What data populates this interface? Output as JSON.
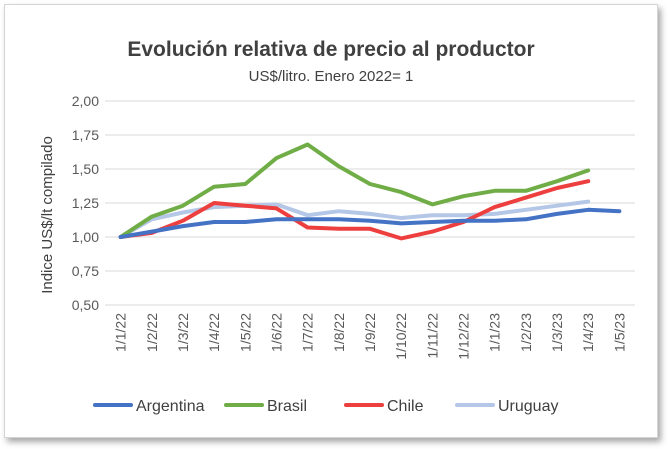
{
  "chart_data": {
    "type": "line",
    "title": "Evolución relativa de precio al productor",
    "subtitle": "US$/litro. Enero 2022= 1",
    "ylabel": "Indice US$/lt compilado",
    "xlabel": "",
    "ylim": [
      0.5,
      2.0
    ],
    "y_ticks": [
      "0,50",
      "0,75",
      "1,00",
      "1,25",
      "1,50",
      "1,75",
      "2,00"
    ],
    "y_tick_values": [
      0.5,
      0.75,
      1.0,
      1.25,
      1.5,
      1.75,
      2.0
    ],
    "categories": [
      "1/1/22",
      "1/2/22",
      "1/3/22",
      "1/4/22",
      "1/5/22",
      "1/6/22",
      "1/7/22",
      "1/8/22",
      "1/9/22",
      "1/10/22",
      "1/11/22",
      "1/12/22",
      "1/1/23",
      "1/2/23",
      "1/3/23",
      "1/4/23",
      "1/5/23"
    ],
    "grid": true,
    "legend_position": "bottom",
    "series": [
      {
        "name": "Argentina",
        "color": "#4472c4",
        "values": [
          1.0,
          1.04,
          1.08,
          1.11,
          1.11,
          1.13,
          1.13,
          1.13,
          1.12,
          1.1,
          1.11,
          1.12,
          1.12,
          1.13,
          1.17,
          1.2,
          1.19
        ]
      },
      {
        "name": "Brasil",
        "color": "#70ad47",
        "values": [
          1.0,
          1.15,
          1.23,
          1.37,
          1.39,
          1.58,
          1.68,
          1.52,
          1.39,
          1.33,
          1.24,
          1.3,
          1.34,
          1.34,
          1.41,
          1.49,
          null
        ]
      },
      {
        "name": "Chile",
        "color": "#ee3f3f",
        "values": [
          1.0,
          1.03,
          1.12,
          1.25,
          1.23,
          1.21,
          1.07,
          1.06,
          1.06,
          0.99,
          1.04,
          1.11,
          1.22,
          1.29,
          1.36,
          1.41,
          null
        ]
      },
      {
        "name": "Uruguay",
        "color": "#b4c7e7",
        "values": [
          1.0,
          1.13,
          1.18,
          1.22,
          1.23,
          1.24,
          1.16,
          1.19,
          1.17,
          1.14,
          1.16,
          1.16,
          1.17,
          1.2,
          1.23,
          1.26,
          null
        ]
      }
    ]
  }
}
